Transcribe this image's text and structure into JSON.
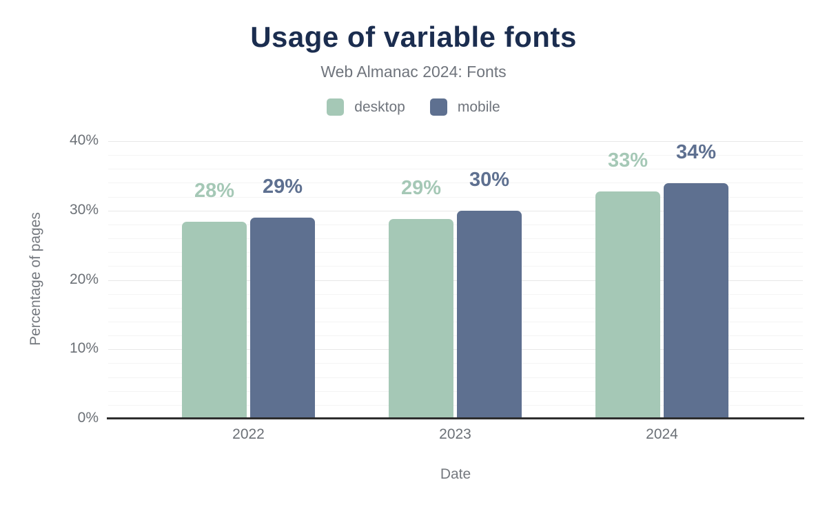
{
  "chart_data": {
    "type": "bar",
    "title": "Usage of variable fonts",
    "subtitle": "Web Almanac 2024: Fonts",
    "xlabel": "Date",
    "ylabel": "Percentage of pages",
    "categories": [
      "2022",
      "2023",
      "2024"
    ],
    "series": [
      {
        "name": "desktop",
        "color": "#a5c8b6",
        "values": [
          28.4,
          28.8,
          32.8
        ],
        "labels": [
          "28%",
          "29%",
          "33%"
        ]
      },
      {
        "name": "mobile",
        "color": "#5e7090",
        "values": [
          29.0,
          30.0,
          33.9
        ],
        "labels": [
          "29%",
          "30%",
          "34%"
        ]
      }
    ],
    "ylim": [
      0,
      40
    ],
    "yticks": {
      "values": [
        0,
        10,
        20,
        30,
        40
      ],
      "labels": [
        "0%",
        "10%",
        "20%",
        "30%",
        "40%"
      ]
    },
    "grid": {
      "minor_step": 2,
      "major_step": 10,
      "shown": true
    },
    "legend_position": "top"
  },
  "colors": {
    "title": "#1b2d4f",
    "subtitle": "#6f747c",
    "axis_text": "#6b7076",
    "axis_title": "#75797f",
    "grid_major": "#e7e7e7",
    "grid_minor": "#f4f4f4",
    "axis_line": "#2d2d2d",
    "background": "#ffffff"
  }
}
